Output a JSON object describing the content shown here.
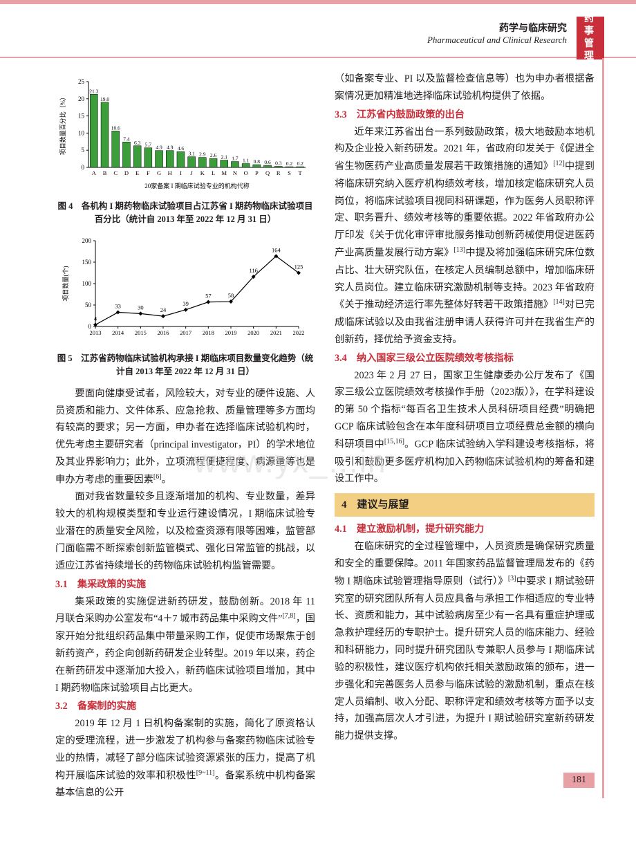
{
  "header": {
    "cn": "药学与临床研究",
    "en": "Pharmaceutical and Clinical Research",
    "sideTab": "药 事管 理"
  },
  "watermark": "www.yx_...in",
  "pageNumber": "181",
  "fig4": {
    "type": "bar",
    "title": "图 4　各机构 I 期药物临床试验项目占江苏省 I 期药物临床试验项目百分比（统计自 2013 年至 2022 年 12 月 31 日）",
    "ylabel": "项目数量百分比（%）",
    "xlabel": "20家备案 I 期临床试验专业的机构代称",
    "categories": [
      "A",
      "B",
      "C",
      "D",
      "E",
      "F",
      "G",
      "H",
      "I",
      "J",
      "K",
      "L",
      "M",
      "N",
      "O",
      "P",
      "Q",
      "R",
      "S",
      "T"
    ],
    "values": [
      21.3,
      19.0,
      10.6,
      7.4,
      6.3,
      5.7,
      4.9,
      4.9,
      4.6,
      3.1,
      2.9,
      2.6,
      2.1,
      1.7,
      1.1,
      0.8,
      0.6,
      0.3,
      0.2,
      0.2
    ],
    "value_labels": [
      "21.3",
      "19.0",
      "10.6",
      "7.4",
      "6.3",
      "5.7",
      "4.9",
      "4.9",
      "4.6",
      "3.1",
      "2.9",
      "2.6",
      "2.1",
      "1.7",
      "1.1",
      "0.8",
      "0.6",
      "0.3",
      "0.2",
      "0.2"
    ],
    "ylim": [
      0,
      25
    ],
    "ytick_step": 5,
    "bar_color": "#3b9e3b",
    "bar_stroke": "#000000",
    "axis_color": "#000000",
    "label_fontsize": 9,
    "background_color": "#ffffff"
  },
  "fig5": {
    "type": "line",
    "title": "图 5　江苏省药物临床试验机构承接 I 期临床项目数量变化趋势（统计自 2013 年至 2022 年 12 月 31 日）",
    "ylabel": "项目数量(个)",
    "x_values": [
      2013,
      2014,
      2015,
      2016,
      2017,
      2018,
      2019,
      2020,
      2021,
      2022
    ],
    "y_values": [
      4,
      33,
      30,
      24,
      39,
      57,
      58,
      116,
      164,
      125
    ],
    "point_labels": [
      "4",
      "33",
      "30",
      "24",
      "39",
      "57",
      "58",
      "116",
      "164",
      "125"
    ],
    "ylim": [
      0,
      200
    ],
    "ytick_step": 50,
    "marker": "diamond",
    "marker_color": "#000000",
    "line_color": "#000000",
    "axis_color": "#000000",
    "label_fontsize": 9,
    "background_color": "#ffffff"
  },
  "leftCol": {
    "p1": "要面向健康受试者，风险较大，对专业的硬件设施、人员资质和能力、文件体系、应急抢救、质量管理等多方面均有较高的要求；另一方面，申办者在选择临床试验机构时，优先考虑主要研究者（principal investigator，PI）的学术地位及其业界影响力；此外，立项流程便捷程度、病源量等也是申办方考虑的重要因素",
    "p1_ref": "[6]",
    "p1_tail": "。",
    "p2": "面对我省数量较多且逐渐增加的机构、专业数量，差异较大的机构规模类型和专业运行建设情况，I 期临床试验专业潜在的质量安全风险，以及检查资源有限等困难，监管部门面临需不断探索创新监管模式、强化日常监管的挑战，以适应江苏省持续增长的药物临床试验机构监管需要。",
    "s31_title": "3.1　集采政策的实施",
    "s31_body": "集采政策的实施促进新药研发，鼓励创新。2018 年 11 月联合采购办公室发布“4＋7 城市药品集中采购文件”",
    "s31_ref": "[7,8]",
    "s31_tail": "，国家开始分批组织药品集中带量采购工作，促使市场聚焦于创新药资产，药企向创新药研发企业转型。2019 年以来，药企在新药研发中逐渐加大投入，新药临床试验项目增加，其中 I 期药物临床试验项目占比更大。",
    "s32_title": "3.2　备案制的实施",
    "s32_body": "2019 年 12 月 1 日机构备案制的实施，简化了原资格认定的受理流程，进一步激发了机构参与备案药物临床试验专业的热情，减轻了部分临床试验资源紧张的压力，提高了机构开展临床试验的效率和积极性",
    "s32_ref": "[9~11]",
    "s32_tail": "。备案系统中机构备案基本信息的公开"
  },
  "rightCol": {
    "p0": "（如备案专业、PI 以及监督检查信息等）也为申办者根据备案情况更加精准地选择临床试验机构提供了依据。",
    "s33_title": "3.3　江苏省内鼓励政策的出台",
    "s33_body_a": "近年来江苏省出台一系列鼓励政策，极大地鼓励本地机构及企业投入新药研发。2021 年，省政府印发关于《促进全省生物医药产业高质量发展若干政策措施的通知》",
    "s33_ref1": "[12]",
    "s33_body_b": "中提到将临床研究纳入医疗机构绩效考核，增加核定临床研究人员岗位，将临床试验项目视同科研课题，作为医务人员职称评定、职务晋升、绩效考核等的重要依据。2022 年省政府办公厅印发《关于优化审评审批服务推动创新药械使用促进医药产业高质量发展行动方案》",
    "s33_ref2": "[13]",
    "s33_body_c": "中提及将加强临床研究床位数占比、壮大研究队伍，在核定人员编制总额中，增加临床研究人员岗位。建立临床研究激励机制等支持。2023 年省政府《关于推动经济运行率先整体好转若干政策措施》",
    "s33_ref3": "[14]",
    "s33_body_d": "对已完成临床试验以及由我省注册申请人获得许可并在我省生产的创新药，择优给予资金支持。",
    "s34_title": "3.4　纳入国家三级公立医院绩效考核指标",
    "s34_body_a": "2023 年 2 月 27 日，国家卫生健康委办公厅发布了《国家三级公立医院绩效考核操作手册（2023版）》，在学科建设的第 50 个指标“每百名卫生技术人员科研项目经费”明确把 GCP 临床试验包含在本年度科研项目立项经费总金额的横向科研项目中",
    "s34_ref": "[15,16]",
    "s34_body_b": "。GCP 临床试验纳入学科建设考核指标，将吸引和鼓励更多医疗机构加入药物临床试验机构的筹备和建设工作中。",
    "s4_box": "4　建议与展望",
    "s41_title": "4.1　建立激励机制，提升研究能力",
    "s41_body_a": "在临床研究的全过程管理中，人员资质是确保研究质量和安全的重要保障。2011 年国家药品监督管理局发布的《药物 I 期临床试验管理指导原则（试行）》",
    "s41_ref": "[3]",
    "s41_body_b": "中要求 I 期试验研究室的研究团队所有人员应具备与承担工作相适应的专业特长、资质和能力，其中试验病房至少有一名具有重症护理或急救护理经历的专职护士。提升研究人员的临床能力、经验和科研能力，同时提升研究团队专兼职人员参与 I 期临床试验的积极性，建议医疗机构依托相关激励政策的颁布，进一步强化和完善医务人员参与临床试验的激励机制，重点在核定人员编制、收入分配、职称评定和绩效考核等方面予以支持，加强高层次人才引进，为提升 I 期试验研究室新药研发能力提供支撑。"
  }
}
